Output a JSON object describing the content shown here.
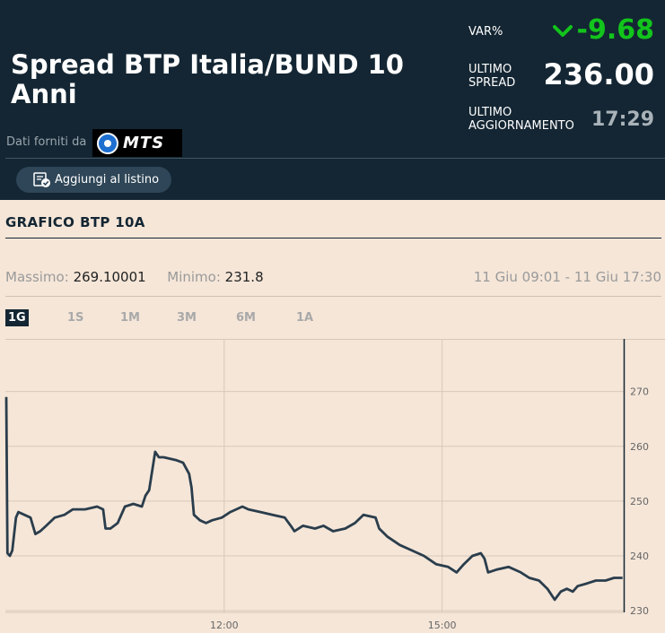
{
  "header": {
    "title": "Spread BTP Italia/BUND 10 Anni",
    "provider_label": "Dati forniti da",
    "provider_logo_text": "MTS",
    "add_button_label": "Aggiungi al listino",
    "var_label": "VAR%",
    "var_value": "-9.68",
    "spread_label_1": "ULTIMO",
    "spread_label_2": "SPREAD",
    "spread_value": "236.00",
    "update_label_1": "ULTIMO",
    "update_label_2": "AGGIORNAMENTO",
    "update_value": "17:29",
    "icons": {
      "var_direction": "chevron-down-icon",
      "add": "list-add-icon"
    },
    "colors": {
      "header_bg": "#142633",
      "negative_var": "#12c41c"
    }
  },
  "section": {
    "title": "GRAFICO",
    "symbol": "BTP 10A"
  },
  "stats": {
    "max_label": "Massimo:",
    "max_value": "269.10001",
    "min_label": "Minimo:",
    "min_value": "231.8",
    "range_text": "11 Giu 09:01 - 11 Giu 17:30"
  },
  "periods": [
    {
      "label": "1G",
      "active": true
    },
    {
      "label": "1S",
      "active": false
    },
    {
      "label": "1M",
      "active": false
    },
    {
      "label": "3M",
      "active": false
    },
    {
      "label": "6M",
      "active": false
    },
    {
      "label": "1A",
      "active": false
    }
  ],
  "chart_data": {
    "type": "line",
    "x_axis": {
      "min": "09:00",
      "max": "17:30",
      "ticks": [
        "12:00",
        "15:00"
      ]
    },
    "y_axis": {
      "min": 229.7,
      "max": 279.6,
      "ticks": [
        230,
        240,
        250,
        260,
        270
      ],
      "position": "right"
    },
    "grid": true,
    "line_color": "#2a3d4c",
    "series": [
      {
        "points": [
          [
            "09:00",
            269.0
          ],
          [
            "09:01",
            240.5
          ],
          [
            "09:03",
            240.0
          ],
          [
            "09:05",
            241.0
          ],
          [
            "09:08",
            247.0
          ],
          [
            "09:10",
            248.0
          ],
          [
            "09:15",
            247.5
          ],
          [
            "09:20",
            247.0
          ],
          [
            "09:24",
            244.0
          ],
          [
            "09:28",
            244.5
          ],
          [
            "09:33",
            245.5
          ],
          [
            "09:40",
            247.0
          ],
          [
            "09:48",
            247.5
          ],
          [
            "09:55",
            248.5
          ],
          [
            "10:05",
            248.5
          ],
          [
            "10:15",
            249.0
          ],
          [
            "10:20",
            248.5
          ],
          [
            "10:22",
            245.0
          ],
          [
            "10:26",
            245.0
          ],
          [
            "10:32",
            246.0
          ],
          [
            "10:38",
            249.0
          ],
          [
            "10:45",
            249.5
          ],
          [
            "10:52",
            249.0
          ],
          [
            "10:55",
            251.0
          ],
          [
            "10:58",
            252.0
          ],
          [
            "11:03",
            259.0
          ],
          [
            "11:06",
            258.0
          ],
          [
            "11:10",
            258.0
          ],
          [
            "11:20",
            257.5
          ],
          [
            "11:26",
            257.0
          ],
          [
            "11:31",
            255.0
          ],
          [
            "11:33",
            252.5
          ],
          [
            "11:35",
            247.5
          ],
          [
            "11:40",
            246.5
          ],
          [
            "11:45",
            246.0
          ],
          [
            "11:50",
            246.5
          ],
          [
            "11:58",
            247.0
          ],
          [
            "12:05",
            248.0
          ],
          [
            "12:15",
            249.0
          ],
          [
            "12:20",
            248.5
          ],
          [
            "12:30",
            248.0
          ],
          [
            "12:40",
            247.5
          ],
          [
            "12:50",
            247.0
          ],
          [
            "12:55",
            245.5
          ],
          [
            "12:58",
            244.5
          ],
          [
            "13:05",
            245.5
          ],
          [
            "13:15",
            245.0
          ],
          [
            "13:22",
            245.5
          ],
          [
            "13:30",
            244.5
          ],
          [
            "13:40",
            245.0
          ],
          [
            "13:48",
            246.0
          ],
          [
            "13:55",
            247.5
          ],
          [
            "14:05",
            247.0
          ],
          [
            "14:08",
            245.0
          ],
          [
            "14:15",
            243.5
          ],
          [
            "14:25",
            242.0
          ],
          [
            "14:35",
            241.0
          ],
          [
            "14:45",
            240.0
          ],
          [
            "14:55",
            238.5
          ],
          [
            "15:05",
            238.0
          ],
          [
            "15:12",
            237.0
          ],
          [
            "15:18",
            238.5
          ],
          [
            "15:25",
            240.0
          ],
          [
            "15:32",
            240.5
          ],
          [
            "15:35",
            239.5
          ],
          [
            "15:38",
            237.0
          ],
          [
            "15:45",
            237.5
          ],
          [
            "15:55",
            238.0
          ],
          [
            "16:05",
            237.0
          ],
          [
            "16:12",
            236.0
          ],
          [
            "16:20",
            235.5
          ],
          [
            "16:27",
            234.0
          ],
          [
            "16:33",
            232.0
          ],
          [
            "16:38",
            233.5
          ],
          [
            "16:43",
            234.0
          ],
          [
            "16:48",
            233.5
          ],
          [
            "16:52",
            234.5
          ],
          [
            "17:00",
            235.0
          ],
          [
            "17:07",
            235.5
          ],
          [
            "17:15",
            235.5
          ],
          [
            "17:22",
            236.0
          ],
          [
            "17:29",
            236.0
          ]
        ]
      }
    ]
  }
}
